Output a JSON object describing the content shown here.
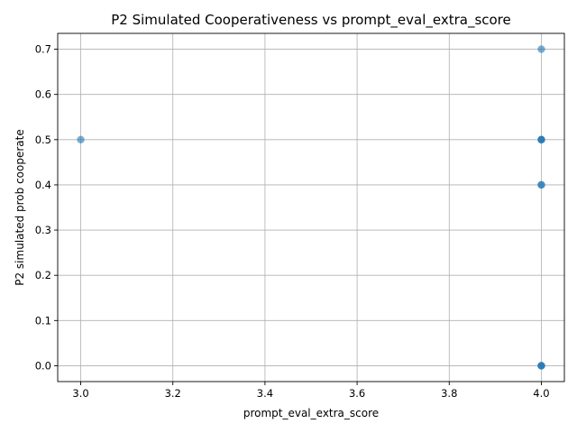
{
  "chart_data": {
    "type": "scatter",
    "title": "P2 Simulated Cooperativeness vs prompt_eval_extra_score",
    "xlabel": "prompt_eval_extra_score",
    "ylabel": "P2 simulated prob cooperate",
    "xlim": [
      2.95,
      4.05
    ],
    "ylim": [
      -0.035,
      0.735
    ],
    "xticks": [
      3.0,
      3.2,
      3.4,
      3.6,
      3.8,
      4.0
    ],
    "xtick_labels": [
      "3.0",
      "3.2",
      "3.4",
      "3.6",
      "3.8",
      "4.0"
    ],
    "yticks": [
      0.0,
      0.1,
      0.2,
      0.3,
      0.4,
      0.5,
      0.6,
      0.7
    ],
    "ytick_labels": [
      "0.0",
      "0.1",
      "0.2",
      "0.3",
      "0.4",
      "0.5",
      "0.6",
      "0.7"
    ],
    "grid": true,
    "point_color": "#1f77b4",
    "point_alpha": 0.6,
    "points": [
      {
        "x": 3.0,
        "y": 0.5
      },
      {
        "x": 4.0,
        "y": 0.7
      },
      {
        "x": 4.0,
        "y": 0.5
      },
      {
        "x": 4.0,
        "y": 0.5
      },
      {
        "x": 4.0,
        "y": 0.5
      },
      {
        "x": 4.0,
        "y": 0.4
      },
      {
        "x": 4.0,
        "y": 0.4
      },
      {
        "x": 4.0,
        "y": 0.0
      },
      {
        "x": 4.0,
        "y": 0.0
      },
      {
        "x": 4.0,
        "y": 0.0
      }
    ]
  }
}
